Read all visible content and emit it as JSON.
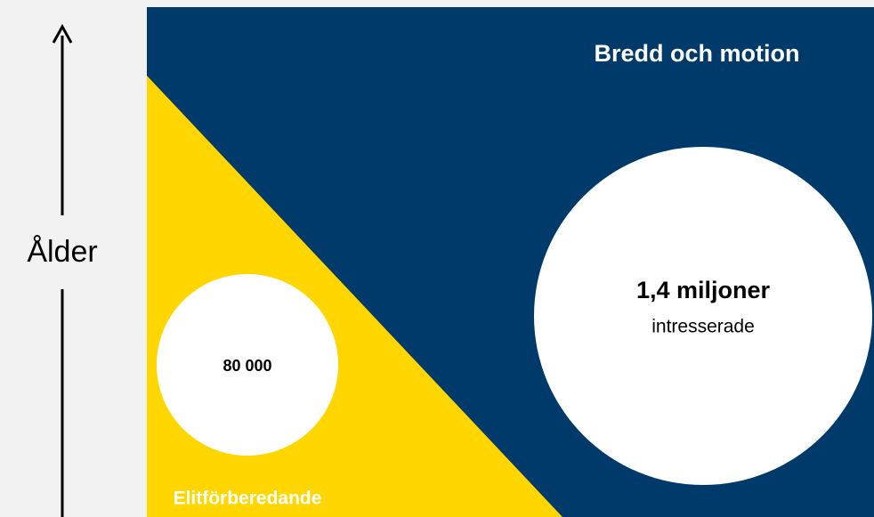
{
  "axis": {
    "label": "Ålder"
  },
  "regions": [
    {
      "title": "Bredd och motion",
      "circle": {
        "value": "1,4 miljoner",
        "caption": "intresserade"
      }
    },
    {
      "title": "Elitförberedande",
      "circle": {
        "value": "80 000"
      }
    }
  ]
}
